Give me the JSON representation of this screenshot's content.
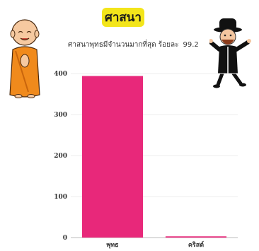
{
  "title": "ศาสนา",
  "subtitle": {
    "text": "ศาสนาพุทธมีจำนวนมากที่สุด ร้อยละ",
    "value": "99.2"
  },
  "colors": {
    "title_badge": "#f3e51a",
    "bar": "#e8287a"
  },
  "icons": {
    "left": "monk-mascot-icon",
    "right": "rabbi-mascot-icon"
  },
  "chart_data": {
    "type": "bar",
    "categories": [
      "พุทธ",
      "คริสต์"
    ],
    "values": [
      394,
      3
    ],
    "ylim": [
      0,
      400
    ],
    "yticks": [
      0,
      100,
      200,
      300,
      400
    ],
    "ytick_labels": [
      "0",
      "100",
      "200",
      "300",
      "400"
    ],
    "grid": true,
    "bar_color": "#e8287a"
  }
}
